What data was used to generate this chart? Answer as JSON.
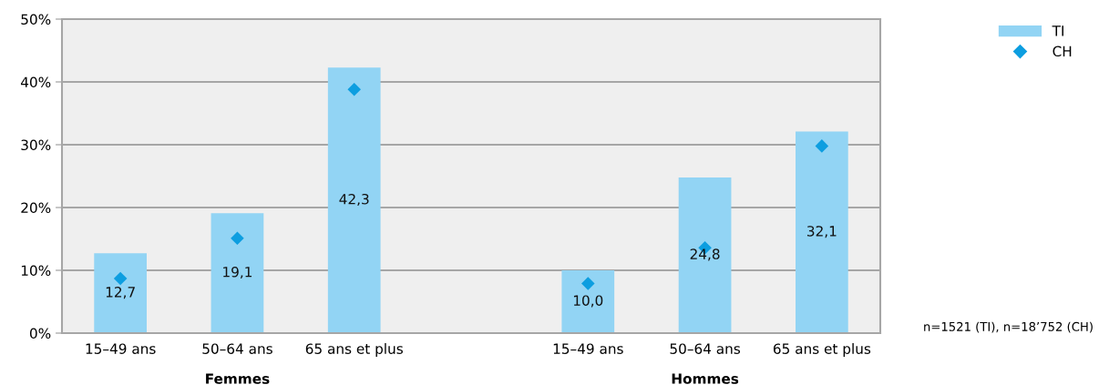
{
  "chart_data": {
    "type": "bar",
    "categories": [
      "15–49 ans",
      "50–64 ans",
      "65 ans et plus",
      null,
      "15–49 ans",
      "50–64 ans",
      "65 ans et plus"
    ],
    "series": [
      {
        "name": "TI",
        "color": "#92d4f4",
        "values": [
          12.7,
          19.1,
          42.3,
          null,
          10.0,
          24.8,
          32.1
        ],
        "value_labels": [
          "12,7",
          "19,1",
          "42,3",
          null,
          "10,0",
          "24,8",
          "32,1"
        ]
      },
      {
        "name": "CH",
        "type": "scatter",
        "color": "#0d9ee0",
        "marker": "diamond",
        "values": [
          8.7,
          15.1,
          38.8,
          null,
          7.9,
          13.6,
          29.8
        ]
      }
    ],
    "ylim": [
      0,
      50
    ],
    "yticks": [
      {
        "value": 0,
        "label": "0%"
      },
      {
        "value": 10,
        "label": "10%"
      },
      {
        "value": 20,
        "label": "20%"
      },
      {
        "value": 30,
        "label": "30%"
      },
      {
        "value": 40,
        "label": "40%"
      },
      {
        "value": 50,
        "label": "50%"
      }
    ],
    "grid": "y",
    "legend": "top right",
    "annotations": [
      "Femmes",
      "Hommes",
      "n=1521 (TI), n=18’752 (CH)"
    ]
  }
}
